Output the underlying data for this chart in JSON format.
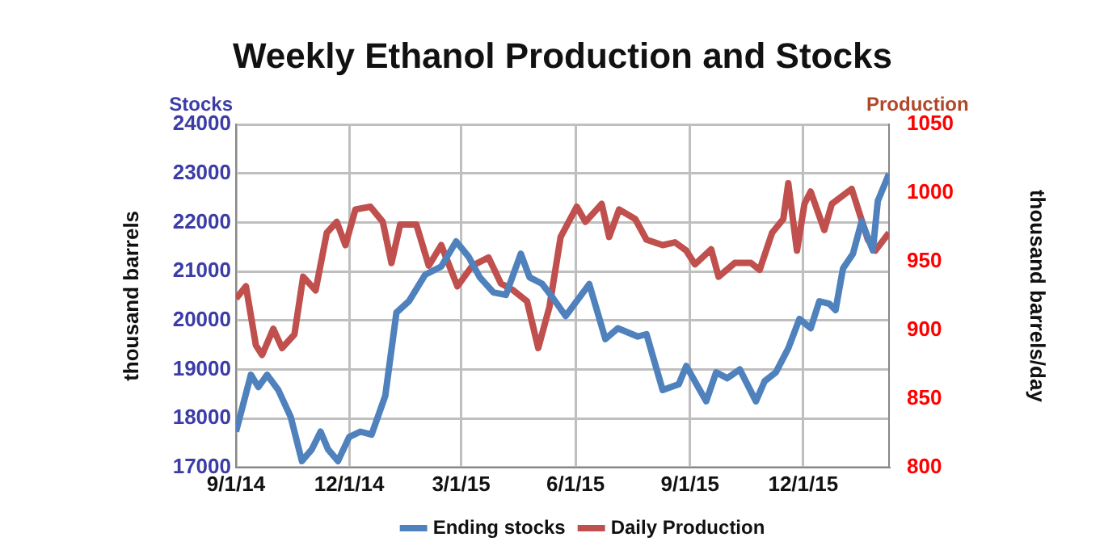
{
  "chart_data": {
    "type": "line",
    "title": "Weekly Ethanol Production and Stocks",
    "ylabel": "thousand barrels",
    "y2label": "thousand barrels/day",
    "annotations": [
      "Stocks",
      "Production"
    ],
    "xlim": [
      "2014-09-01",
      "2016-02-08"
    ],
    "xticks": [
      {
        "value": "2014-09-01",
        "label": "9/1/14"
      },
      {
        "value": "2014-12-01",
        "label": "12/1/14"
      },
      {
        "value": "2015-03-01",
        "label": "3/1/15"
      },
      {
        "value": "2015-06-01",
        "label": "6/1/15"
      },
      {
        "value": "2015-09-01",
        "label": "9/1/15"
      },
      {
        "value": "2015-12-01",
        "label": "12/1/15"
      }
    ],
    "ylim": [
      17000,
      24000
    ],
    "yticks": [
      17000,
      18000,
      19000,
      20000,
      21000,
      22000,
      23000,
      24000
    ],
    "y2lim": [
      800,
      1050
    ],
    "y2ticks": [
      800,
      850,
      900,
      950,
      1000,
      1050
    ],
    "grid": true,
    "legend": "bottom",
    "series": [
      {
        "name": "Ending stocks",
        "color": "#4f81bd",
        "x": [
          "2014-09-01",
          "2014-09-13",
          "2014-09-19",
          "2014-09-26",
          "2014-10-05",
          "2014-10-15",
          "2014-10-24",
          "2014-11-01",
          "2014-11-08",
          "2014-11-14",
          "2014-11-22",
          "2014-12-01",
          "2014-12-10",
          "2014-12-19",
          "2014-12-30",
          "2015-01-08",
          "2015-01-18",
          "2015-01-31",
          "2015-02-13",
          "2015-02-25",
          "2015-03-07",
          "2015-03-16",
          "2015-03-27",
          "2015-04-06",
          "2015-04-18",
          "2015-04-25",
          "2015-05-05",
          "2015-05-14",
          "2015-05-24",
          "2015-06-12",
          "2015-06-25",
          "2015-07-05",
          "2015-07-21",
          "2015-07-28",
          "2015-08-10",
          "2015-08-23",
          "2015-08-29",
          "2015-09-14",
          "2015-09-22",
          "2015-10-01",
          "2015-10-11",
          "2015-10-24",
          "2015-10-31",
          "2015-11-09",
          "2015-11-19",
          "2015-11-28",
          "2015-12-07",
          "2015-12-14",
          "2015-12-22",
          "2015-12-27",
          "2016-01-02",
          "2016-01-10",
          "2016-01-17",
          "2016-01-26",
          "2016-01-30",
          "2016-02-08"
        ],
        "values": [
          17730,
          18890,
          18640,
          18890,
          18580,
          18030,
          17130,
          17370,
          17730,
          17370,
          17130,
          17620,
          17730,
          17670,
          18460,
          20160,
          20390,
          20930,
          21100,
          21610,
          21300,
          20880,
          20570,
          20520,
          21360,
          20880,
          20750,
          20450,
          20090,
          20740,
          19620,
          19840,
          19670,
          19720,
          18580,
          18700,
          19070,
          18350,
          18940,
          18820,
          19000,
          18350,
          18760,
          18940,
          19430,
          20030,
          19840,
          20390,
          20340,
          20210,
          21060,
          21360,
          22020,
          21430,
          22440,
          22990
        ]
      },
      {
        "name": "Daily Production",
        "color": "#c0504d",
        "axis": "y2",
        "x": [
          "2014-09-01",
          "2014-09-09",
          "2014-09-17",
          "2014-09-22",
          "2014-10-01",
          "2014-10-08",
          "2014-10-18",
          "2014-10-25",
          "2014-11-04",
          "2014-11-13",
          "2014-11-21",
          "2014-11-28",
          "2014-12-06",
          "2014-12-18",
          "2014-12-28",
          "2015-01-04",
          "2015-01-11",
          "2015-01-24",
          "2015-02-03",
          "2015-02-13",
          "2015-02-26",
          "2015-03-10",
          "2015-03-23",
          "2015-04-02",
          "2015-04-12",
          "2015-04-23",
          "2015-05-02",
          "2015-05-11",
          "2015-05-20",
          "2015-06-02",
          "2015-06-09",
          "2015-06-22",
          "2015-06-28",
          "2015-07-06",
          "2015-07-19",
          "2015-07-28",
          "2015-08-10",
          "2015-08-20",
          "2015-08-29",
          "2015-09-05",
          "2015-09-18",
          "2015-09-24",
          "2015-10-07",
          "2015-10-20",
          "2015-10-27",
          "2015-11-06",
          "2015-11-15",
          "2015-11-19",
          "2015-11-26",
          "2015-12-02",
          "2015-12-07",
          "2015-12-18",
          "2015-12-24",
          "2016-01-09",
          "2016-01-22",
          "2016-01-28",
          "2016-02-08"
        ],
        "values": [
          923,
          932,
          889,
          882,
          901,
          887,
          897,
          939,
          929,
          971,
          979,
          962,
          988,
          990,
          979,
          949,
          977,
          977,
          947,
          962,
          932,
          947,
          953,
          934,
          929,
          921,
          887,
          917,
          968,
          990,
          979,
          992,
          968,
          988,
          981,
          966,
          962,
          964,
          958,
          948,
          959,
          939,
          949,
          949,
          944,
          971,
          981,
          1007,
          958,
          992,
          1001,
          973,
          992,
          1003,
          966,
          958,
          971
        ]
      }
    ]
  }
}
